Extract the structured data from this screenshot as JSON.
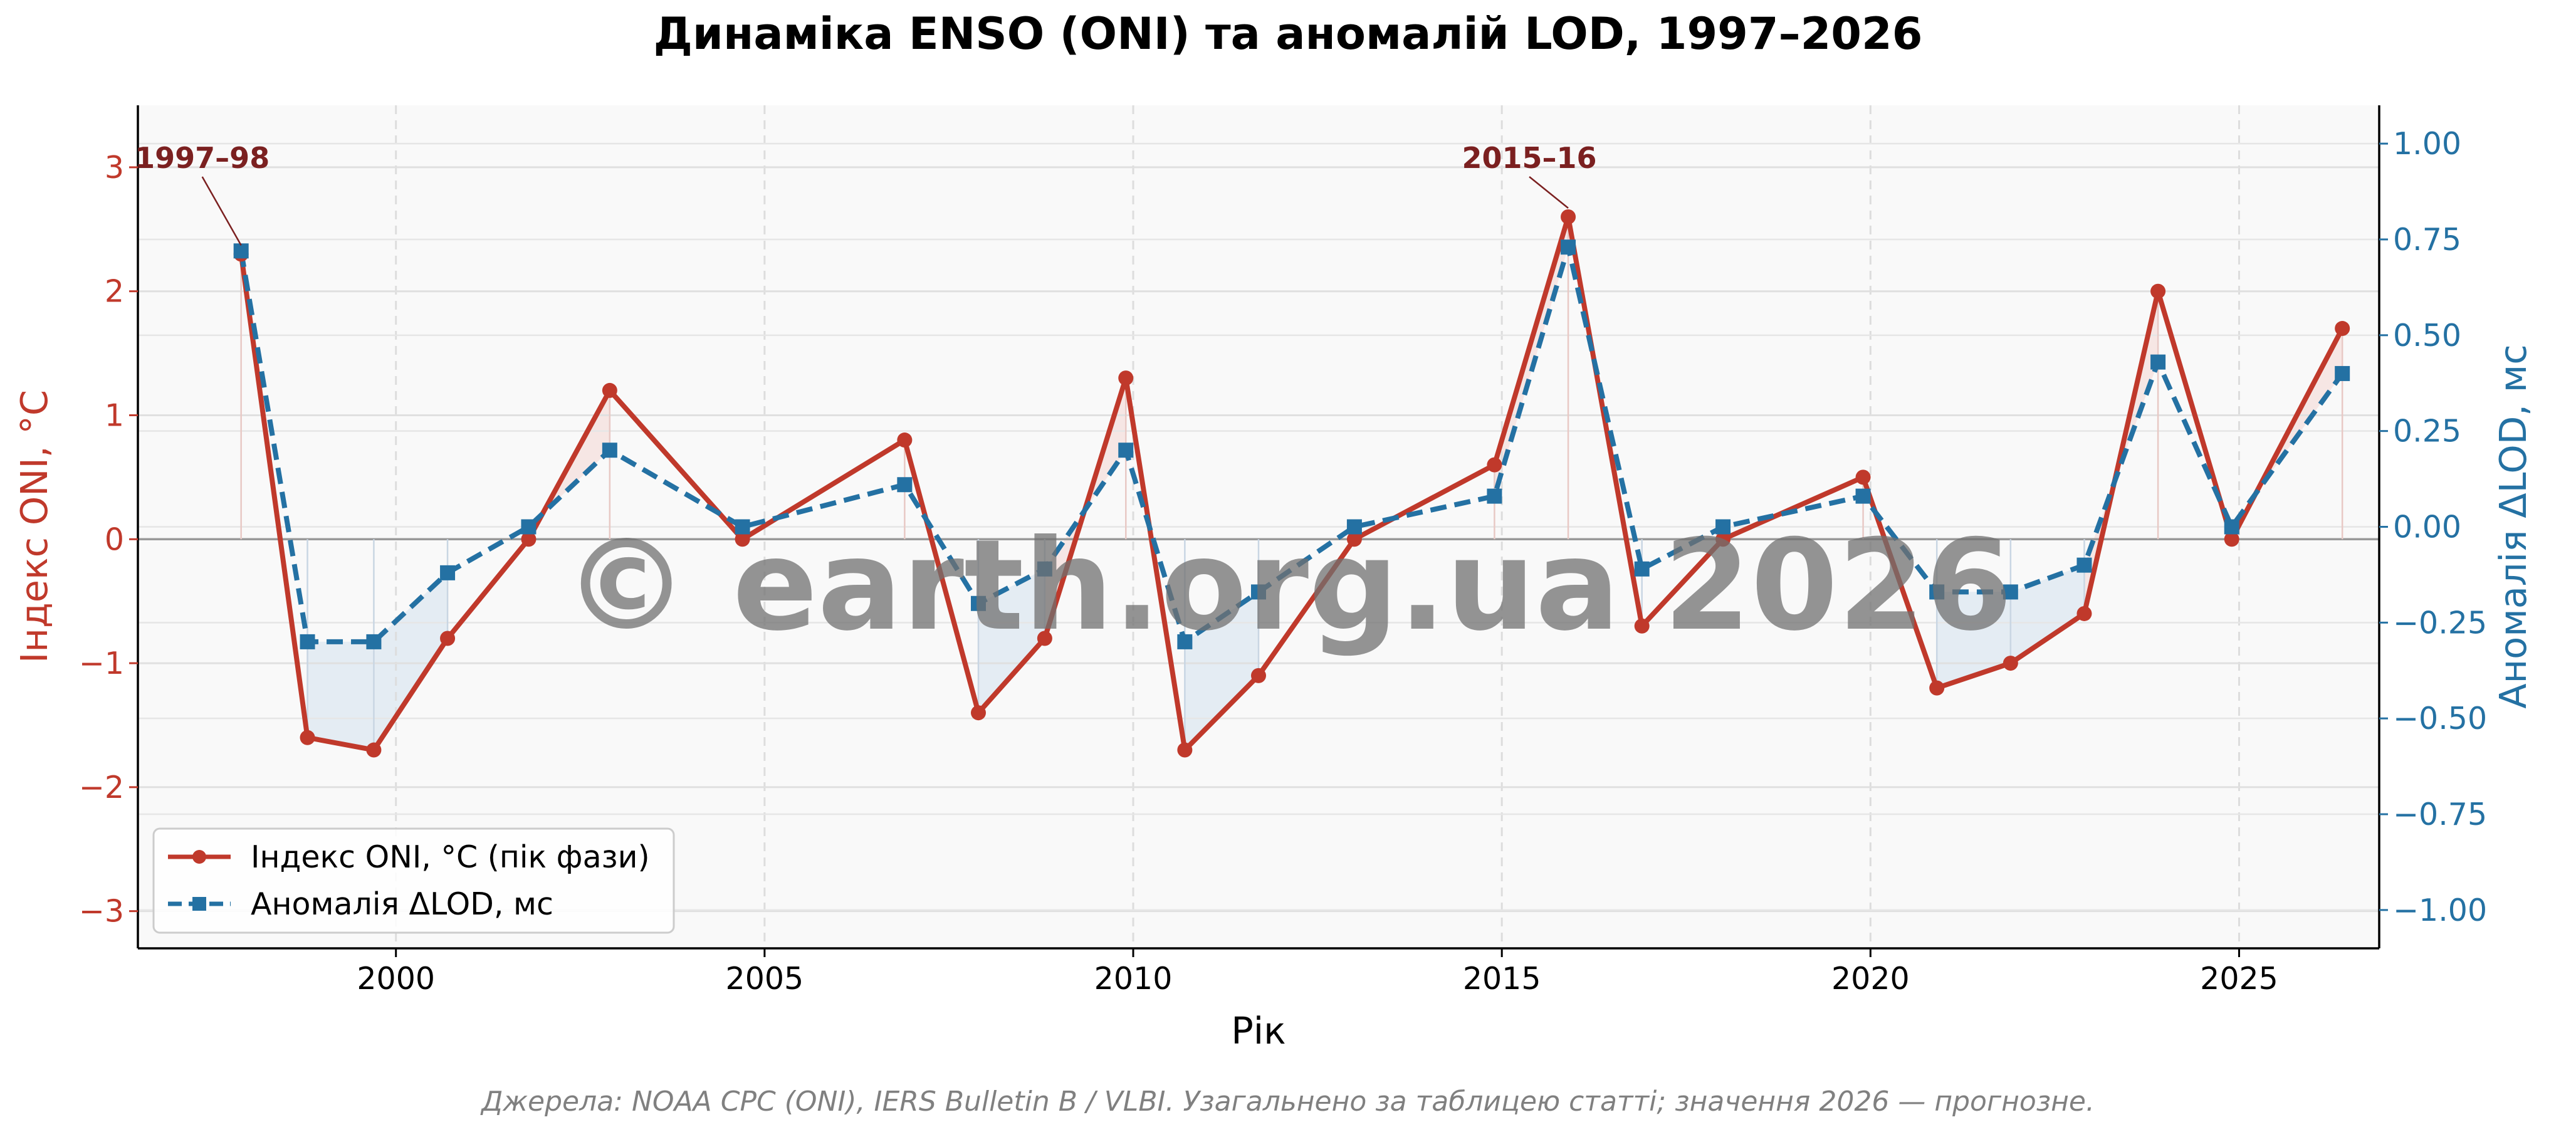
{
  "chart_data": {
    "type": "line",
    "title": "Динаміка ENSO (ONI) та аномалій LOD, 1997–2026",
    "xlabel": "Рік",
    "ylabel_left": "Індекс ONI, °C",
    "ylabel_right": "Аномалія ΔLOD, мс",
    "xlim": [
      1996.5,
      2026.9
    ],
    "ylim_left": [
      -3.3,
      3.5
    ],
    "ylim_right": [
      -1.1,
      1.1
    ],
    "x_ticks": [
      2000,
      2005,
      2010,
      2015,
      2020,
      2025
    ],
    "y_left_ticks": [
      -3,
      -2,
      -1,
      0,
      1,
      2,
      3
    ],
    "y_right_ticks": [
      -1.0,
      -0.75,
      -0.5,
      -0.25,
      0.0,
      0.25,
      0.5,
      0.75,
      1.0
    ],
    "y_left_tick_labels": [
      "−3",
      "−2",
      "−1",
      "0",
      "1",
      "2",
      "3"
    ],
    "y_right_tick_labels": [
      "−1.00",
      "−0.75",
      "−0.50",
      "−0.25",
      "0.00",
      "0.25",
      "0.50",
      "0.75",
      "1.00"
    ],
    "grid": true,
    "legend_position": "bottom-left",
    "x": [
      1997.9,
      1998.8,
      1999.7,
      2000.7,
      2001.8,
      2002.9,
      2004.7,
      2006.9,
      2007.9,
      2008.8,
      2009.9,
      2010.7,
      2011.7,
      2013.0,
      2014.9,
      2015.9,
      2016.9,
      2018.0,
      2019.9,
      2020.9,
      2021.9,
      2022.9,
      2023.9,
      2024.9,
      2026.4
    ],
    "series": [
      {
        "name": "Індекс ONI, °C (пік фази)",
        "axis": "left",
        "color": "#c0392b",
        "marker": "circle",
        "values": [
          2.3,
          -1.6,
          -1.7,
          -0.8,
          0.0,
          1.2,
          0.0,
          0.8,
          -1.4,
          -0.8,
          1.3,
          -1.7,
          -1.1,
          0.0,
          0.6,
          2.6,
          -0.7,
          0.0,
          0.5,
          -1.2,
          -1.0,
          -0.6,
          2.0,
          0.0,
          1.7
        ]
      },
      {
        "name": "Аномалія ΔLOD, мс",
        "axis": "right",
        "color": "#2471a3",
        "marker": "square",
        "values": [
          0.72,
          -0.3,
          -0.3,
          -0.12,
          0.0,
          0.2,
          0.0,
          0.11,
          -0.2,
          -0.11,
          0.2,
          -0.3,
          -0.17,
          0.0,
          0.08,
          0.73,
          -0.11,
          0.0,
          0.08,
          -0.17,
          -0.17,
          -0.1,
          0.43,
          0.0,
          0.4
        ]
      }
    ],
    "annotations": [
      {
        "label": "1997–98",
        "x": 1997.9,
        "y": 2.3
      },
      {
        "label": "2015–16",
        "x": 2015.9,
        "y": 2.6
      }
    ],
    "source_note": "Джерела: NOAA CPC (ONI), IERS Bulletin B / VLBI. Узагальнено за таблицею статті; значення 2026 — прогнозне.",
    "watermark": "© earth.org.ua 2026",
    "colors": {
      "oni": "#c0392b",
      "lod": "#2471a3",
      "annotation": "#7b2020",
      "plot_bg": "#f9f9f9",
      "el_nino_fill": "#f4d7d4",
      "la_nina_fill": "#d4e2ee"
    }
  }
}
